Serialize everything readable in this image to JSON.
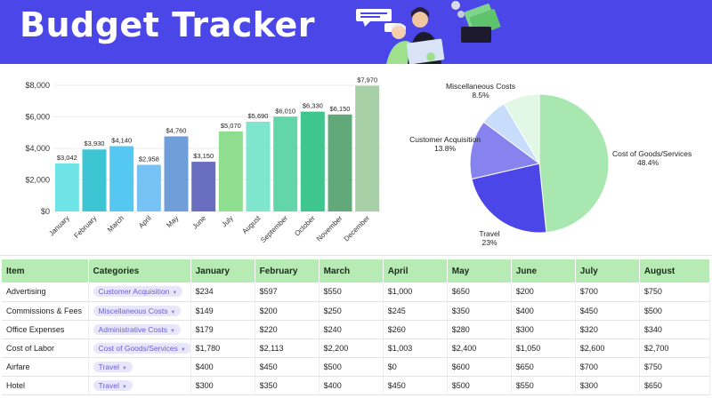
{
  "header": {
    "title": "Budget Tracker"
  },
  "colors": {
    "header_bg": "#4a46e8",
    "table_header_bg": "#b6ebb3",
    "chip_bg": "#e9e6fb",
    "chip_text": "#6a5fd8"
  },
  "chart_data": [
    {
      "type": "bar",
      "title": "",
      "xlabel": "",
      "ylabel": "",
      "categories": [
        "January",
        "February",
        "March",
        "April",
        "May",
        "June",
        "July",
        "August",
        "September",
        "October",
        "November",
        "December"
      ],
      "values": [
        3042,
        3930,
        4140,
        2958,
        4760,
        3150,
        5070,
        5690,
        6010,
        6330,
        6150,
        7970
      ],
      "value_labels": [
        "$3,042",
        "$3,930",
        "$4,140",
        "$2,958",
        "$4,760",
        "$3,150",
        "$5,070",
        "$5,690",
        "$6,010",
        "$6,330",
        "$6,150",
        "$7,970"
      ],
      "colors": [
        "#6ee4e6",
        "#3ec5d3",
        "#55c8f2",
        "#76c2f5",
        "#6f9ed8",
        "#6a6ec0",
        "#8fdd8e",
        "#7ee6cc",
        "#62d6a8",
        "#3fc58e",
        "#62a97a",
        "#a8d0a6"
      ],
      "yticks": [
        "$0",
        "$2,000",
        "$4,000",
        "$6,000",
        "$8,000"
      ],
      "ylim": [
        0,
        8000
      ],
      "grid": true
    },
    {
      "type": "pie",
      "labels": [
        "Cost of Goods/Services",
        "Travel",
        "Customer Acquisition",
        "Administrative Costs",
        "Miscellaneous Costs"
      ],
      "values": [
        48.4,
        23,
        13.8,
        6.3,
        8.5
      ],
      "value_labels": [
        "48.4%",
        "23%",
        "13.8%",
        "",
        "8.5%"
      ],
      "colors": [
        "#a9e7b0",
        "#4a46e8",
        "#8683ee",
        "#c8dcfb",
        "#e2f7e6"
      ]
    }
  ],
  "table": {
    "headers": [
      "Item",
      "Categories",
      "January",
      "February",
      "March",
      "April",
      "May",
      "June",
      "July",
      "August"
    ],
    "rows": [
      {
        "item": "Advertising",
        "category": "Customer Acquisition",
        "values": [
          "$234",
          "$597",
          "$550",
          "$1,000",
          "$650",
          "$200",
          "$700",
          "$750"
        ]
      },
      {
        "item": "Commissions & Fees",
        "category": "Miscellaneous Costs",
        "values": [
          "$149",
          "$200",
          "$250",
          "$245",
          "$350",
          "$400",
          "$450",
          "$500"
        ]
      },
      {
        "item": "Office Expenses",
        "category": "Administrative Costs",
        "values": [
          "$179",
          "$220",
          "$240",
          "$260",
          "$280",
          "$300",
          "$320",
          "$340"
        ]
      },
      {
        "item": "Cost of Labor",
        "category": "Cost of Goods/Services",
        "values": [
          "$1,780",
          "$2,113",
          "$2,200",
          "$1,003",
          "$2,400",
          "$1,050",
          "$2,600",
          "$2,700"
        ]
      },
      {
        "item": "Airfare",
        "category": "Travel",
        "values": [
          "$400",
          "$450",
          "$500",
          "$0",
          "$600",
          "$650",
          "$700",
          "$750"
        ]
      },
      {
        "item": "Hotel",
        "category": "Travel",
        "values": [
          "$300",
          "$350",
          "$400",
          "$450",
          "$500",
          "$550",
          "$300",
          "$650"
        ]
      }
    ]
  }
}
